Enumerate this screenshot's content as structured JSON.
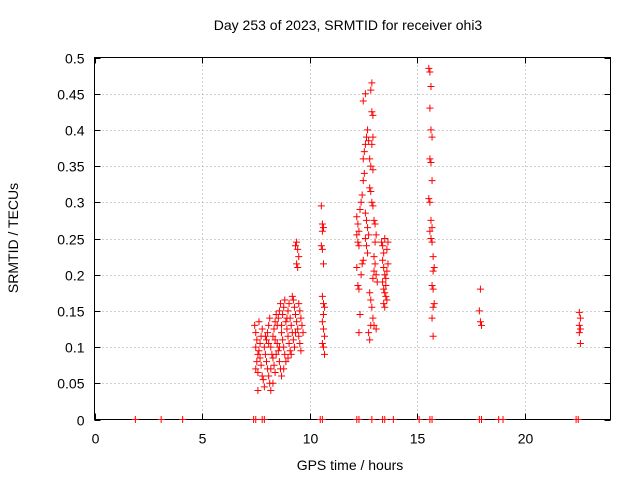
{
  "chart_data": {
    "type": "scatter",
    "title": "Day 253 of 2023, SRMTID for receiver ohi3",
    "xlabel": "GPS time / hours",
    "ylabel": "SRMTID / TECUs",
    "xlim": [
      0,
      24
    ],
    "ylim": [
      0,
      0.5
    ],
    "xticks": [
      0,
      5,
      10,
      15,
      20
    ],
    "xtick_labels": [
      "0",
      "5",
      "10",
      "15",
      "20"
    ],
    "yticks": [
      0,
      0.05,
      0.1,
      0.15,
      0.2,
      0.25,
      0.3,
      0.35,
      0.4,
      0.45,
      0.5
    ],
    "ytick_labels": [
      "0",
      "0.05",
      "0.1",
      "0.15",
      "0.2",
      "0.25",
      "0.3",
      "0.35",
      "0.4",
      "0.45",
      "0.5"
    ],
    "grid": true,
    "marker": "+",
    "series_color": "#ff0000",
    "series": [
      {
        "name": "SRMTID",
        "points": [
          [
            1.9,
            0
          ],
          [
            3.1,
            0
          ],
          [
            4.1,
            0
          ],
          [
            7.4,
            0
          ],
          [
            7.5,
            0
          ],
          [
            7.8,
            0
          ],
          [
            7.9,
            0
          ],
          [
            10.5,
            0
          ],
          [
            10.6,
            0
          ],
          [
            12.2,
            0
          ],
          [
            12.3,
            0
          ],
          [
            12.9,
            0
          ],
          [
            13.4,
            0
          ],
          [
            13.5,
            0
          ],
          [
            13.9,
            0
          ],
          [
            15.1,
            0
          ],
          [
            15.6,
            0
          ],
          [
            15.7,
            0
          ],
          [
            17.9,
            0
          ],
          [
            18.0,
            0
          ],
          [
            18.8,
            0
          ],
          [
            19.0,
            0
          ],
          [
            22.4,
            0
          ],
          [
            22.5,
            0
          ],
          [
            7.45,
            0.13
          ],
          [
            7.5,
            0.12
          ],
          [
            7.55,
            0.11
          ],
          [
            7.5,
            0.1
          ],
          [
            7.6,
            0.09
          ],
          [
            7.55,
            0.08
          ],
          [
            7.5,
            0.07
          ],
          [
            7.6,
            0.065
          ],
          [
            7.65,
            0.095
          ],
          [
            7.7,
            0.105
          ],
          [
            7.75,
            0.115
          ],
          [
            7.8,
            0.125
          ],
          [
            7.7,
            0.085
          ],
          [
            7.75,
            0.075
          ],
          [
            7.8,
            0.06
          ],
          [
            7.85,
            0.055
          ],
          [
            7.9,
            0.045
          ],
          [
            7.6,
            0.04
          ],
          [
            7.65,
            0.135
          ],
          [
            7.9,
            0.1
          ],
          [
            7.95,
            0.09
          ],
          [
            8.0,
            0.08
          ],
          [
            8.05,
            0.07
          ],
          [
            8.1,
            0.06
          ],
          [
            8.15,
            0.05
          ],
          [
            8.2,
            0.04
          ],
          [
            8.0,
            0.11
          ],
          [
            8.05,
            0.12
          ],
          [
            8.1,
            0.13
          ],
          [
            8.15,
            0.14
          ],
          [
            8.2,
            0.1
          ],
          [
            8.25,
            0.09
          ],
          [
            8.3,
            0.085
          ],
          [
            8.35,
            0.075
          ],
          [
            8.4,
            0.065
          ],
          [
            8.3,
            0.115
          ],
          [
            8.35,
            0.125
          ],
          [
            8.4,
            0.135
          ],
          [
            8.45,
            0.145
          ],
          [
            8.5,
            0.105
          ],
          [
            8.55,
            0.095
          ],
          [
            8.6,
            0.08
          ],
          [
            8.65,
            0.07
          ],
          [
            8.7,
            0.06
          ],
          [
            8.5,
            0.13
          ],
          [
            8.55,
            0.14
          ],
          [
            8.6,
            0.15
          ],
          [
            8.65,
            0.16
          ],
          [
            8.7,
            0.12
          ],
          [
            8.75,
            0.11
          ],
          [
            8.8,
            0.1
          ],
          [
            8.85,
            0.09
          ],
          [
            8.9,
            0.08
          ],
          [
            8.75,
            0.145
          ],
          [
            8.8,
            0.155
          ],
          [
            8.85,
            0.165
          ],
          [
            8.9,
            0.135
          ],
          [
            8.95,
            0.125
          ],
          [
            9.0,
            0.115
          ],
          [
            9.05,
            0.105
          ],
          [
            9.1,
            0.095
          ],
          [
            9.0,
            0.15
          ],
          [
            9.05,
            0.16
          ],
          [
            9.1,
            0.14
          ],
          [
            9.15,
            0.13
          ],
          [
            9.2,
            0.12
          ],
          [
            9.25,
            0.11
          ],
          [
            9.3,
            0.1
          ],
          [
            9.2,
            0.17
          ],
          [
            9.25,
            0.165
          ],
          [
            9.3,
            0.155
          ],
          [
            9.35,
            0.145
          ],
          [
            9.4,
            0.135
          ],
          [
            9.45,
            0.125
          ],
          [
            9.5,
            0.115
          ],
          [
            9.55,
            0.105
          ],
          [
            9.6,
            0.095
          ],
          [
            9.5,
            0.16
          ],
          [
            9.55,
            0.15
          ],
          [
            9.6,
            0.14
          ],
          [
            9.65,
            0.13
          ],
          [
            9.7,
            0.12
          ],
          [
            8.2,
            0.07
          ],
          [
            8.3,
            0.05
          ],
          [
            8.45,
            0.09
          ],
          [
            8.6,
            0.1
          ],
          [
            8.8,
            0.07
          ],
          [
            9.0,
            0.085
          ],
          [
            9.15,
            0.09
          ],
          [
            8.1,
            0.105
          ],
          [
            7.95,
            0.115
          ],
          [
            8.4,
            0.11
          ],
          [
            8.7,
            0.13
          ],
          [
            8.95,
            0.14
          ],
          [
            9.35,
            0.12
          ],
          [
            9.35,
            0.24
          ],
          [
            9.4,
            0.245
          ],
          [
            9.45,
            0.235
          ],
          [
            9.4,
            0.215
          ],
          [
            9.45,
            0.21
          ],
          [
            9.5,
            0.225
          ],
          [
            10.55,
            0.295
          ],
          [
            10.6,
            0.27
          ],
          [
            10.65,
            0.265
          ],
          [
            10.6,
            0.26
          ],
          [
            10.55,
            0.24
          ],
          [
            10.6,
            0.235
          ],
          [
            10.65,
            0.215
          ],
          [
            10.6,
            0.17
          ],
          [
            10.65,
            0.16
          ],
          [
            10.7,
            0.155
          ],
          [
            10.65,
            0.145
          ],
          [
            10.6,
            0.135
          ],
          [
            10.65,
            0.125
          ],
          [
            10.7,
            0.115
          ],
          [
            10.6,
            0.105
          ],
          [
            10.65,
            0.1
          ],
          [
            10.7,
            0.09
          ],
          [
            12.2,
            0.255
          ],
          [
            12.25,
            0.245
          ],
          [
            12.3,
            0.24
          ],
          [
            12.2,
            0.28
          ],
          [
            12.25,
            0.27
          ],
          [
            12.3,
            0.26
          ],
          [
            12.35,
            0.29
          ],
          [
            12.4,
            0.3
          ],
          [
            12.45,
            0.31
          ],
          [
            12.5,
            0.33
          ],
          [
            12.55,
            0.34
          ],
          [
            12.5,
            0.36
          ],
          [
            12.55,
            0.37
          ],
          [
            12.6,
            0.38
          ],
          [
            12.5,
            0.44
          ],
          [
            12.6,
            0.45
          ],
          [
            12.65,
            0.39
          ],
          [
            12.7,
            0.4
          ],
          [
            12.75,
            0.385
          ],
          [
            12.8,
            0.36
          ],
          [
            12.85,
            0.35
          ],
          [
            12.9,
            0.465
          ],
          [
            12.85,
            0.455
          ],
          [
            12.9,
            0.425
          ],
          [
            12.95,
            0.42
          ],
          [
            12.9,
            0.38
          ],
          [
            12.95,
            0.39
          ],
          [
            12.95,
            0.345
          ],
          [
            12.8,
            0.32
          ],
          [
            12.85,
            0.315
          ],
          [
            12.9,
            0.3
          ],
          [
            12.95,
            0.295
          ],
          [
            12.6,
            0.285
          ],
          [
            12.65,
            0.275
          ],
          [
            12.7,
            0.265
          ],
          [
            12.75,
            0.255
          ],
          [
            12.6,
            0.25
          ],
          [
            12.65,
            0.24
          ],
          [
            12.7,
            0.23
          ],
          [
            12.2,
            0.21
          ],
          [
            12.25,
            0.185
          ],
          [
            12.3,
            0.18
          ],
          [
            12.35,
            0.145
          ],
          [
            12.3,
            0.12
          ],
          [
            12.8,
            0.175
          ],
          [
            12.85,
            0.165
          ],
          [
            12.9,
            0.155
          ],
          [
            12.95,
            0.14
          ],
          [
            13.0,
            0.13
          ],
          [
            12.95,
            0.195
          ],
          [
            13.0,
            0.205
          ],
          [
            13.05,
            0.215
          ],
          [
            13.0,
            0.225
          ],
          [
            13.1,
            0.2
          ],
          [
            13.15,
            0.19
          ],
          [
            13.05,
            0.245
          ],
          [
            13.1,
            0.255
          ],
          [
            13.0,
            0.275
          ],
          [
            13.05,
            0.27
          ],
          [
            12.75,
            0.12
          ],
          [
            12.8,
            0.11
          ],
          [
            12.85,
            0.13
          ],
          [
            13.1,
            0.125
          ],
          [
            12.4,
            0.2
          ],
          [
            12.45,
            0.215
          ],
          [
            12.5,
            0.22
          ],
          [
            13.35,
            0.245
          ],
          [
            13.4,
            0.24
          ],
          [
            13.45,
            0.23
          ],
          [
            13.5,
            0.25
          ],
          [
            13.4,
            0.22
          ],
          [
            13.45,
            0.21
          ],
          [
            13.5,
            0.2
          ],
          [
            13.55,
            0.195
          ],
          [
            13.4,
            0.19
          ],
          [
            13.45,
            0.18
          ],
          [
            13.5,
            0.175
          ],
          [
            13.55,
            0.17
          ],
          [
            13.6,
            0.165
          ],
          [
            13.45,
            0.16
          ],
          [
            13.5,
            0.155
          ],
          [
            13.55,
            0.185
          ],
          [
            13.6,
            0.205
          ],
          [
            13.65,
            0.215
          ],
          [
            13.6,
            0.235
          ],
          [
            13.65,
            0.245
          ],
          [
            15.55,
            0.485
          ],
          [
            15.6,
            0.48
          ],
          [
            15.65,
            0.46
          ],
          [
            15.6,
            0.43
          ],
          [
            15.65,
            0.4
          ],
          [
            15.7,
            0.39
          ],
          [
            15.6,
            0.36
          ],
          [
            15.65,
            0.355
          ],
          [
            15.7,
            0.33
          ],
          [
            15.55,
            0.305
          ],
          [
            15.6,
            0.3
          ],
          [
            15.65,
            0.275
          ],
          [
            15.7,
            0.265
          ],
          [
            15.6,
            0.26
          ],
          [
            15.65,
            0.25
          ],
          [
            15.7,
            0.245
          ],
          [
            15.75,
            0.225
          ],
          [
            15.8,
            0.21
          ],
          [
            15.75,
            0.205
          ],
          [
            15.7,
            0.185
          ],
          [
            15.75,
            0.18
          ],
          [
            15.8,
            0.16
          ],
          [
            15.75,
            0.155
          ],
          [
            15.7,
            0.14
          ],
          [
            15.75,
            0.115
          ],
          [
            17.95,
            0.18
          ],
          [
            17.9,
            0.15
          ],
          [
            17.95,
            0.135
          ],
          [
            18.0,
            0.13
          ],
          [
            22.55,
            0.148
          ],
          [
            22.6,
            0.14
          ],
          [
            22.55,
            0.13
          ],
          [
            22.6,
            0.125
          ],
          [
            22.55,
            0.12
          ],
          [
            22.6,
            0.105
          ]
        ]
      }
    ]
  }
}
